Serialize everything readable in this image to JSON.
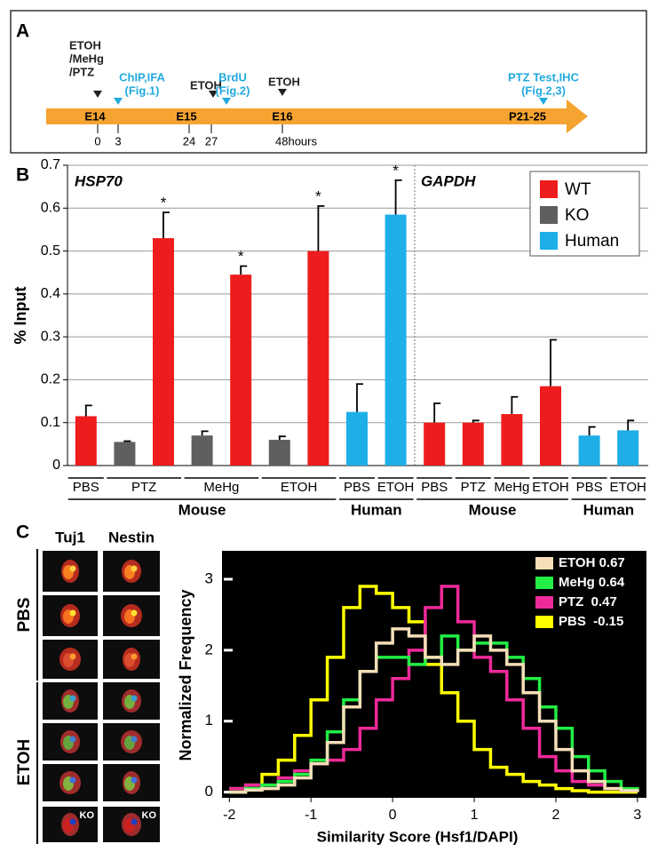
{
  "panel_labels": [
    "A",
    "B",
    "C"
  ],
  "timeline": {
    "events": [
      {
        "lines": [
          "ETOH",
          "/MeHg",
          "/PTZ"
        ],
        "color": "#222222"
      },
      {
        "lines": [
          "ChIP,IFA",
          "(Fig.1)"
        ],
        "color": "#22aadd"
      },
      {
        "lines": [
          "ETOH"
        ],
        "color": "#222222"
      },
      {
        "lines": [
          "BrdU",
          "(Fig.2)"
        ],
        "color": "#22aadd"
      },
      {
        "lines": [
          "ETOH"
        ],
        "color": "#222222"
      },
      {
        "lines": [
          "PTZ Test,IHC",
          "(Fig.2,3)"
        ],
        "color": "#22aadd"
      }
    ],
    "stages": [
      "E14",
      "E15",
      "E16",
      "P21-25"
    ],
    "hours": [
      "0",
      "3",
      "24",
      "27",
      "48hours"
    ],
    "bar_color": "#f5a431"
  },
  "chart_data": [
    {
      "type": "bar",
      "ylabel": "% Input",
      "gene_labels": [
        "HSP70",
        "GAPDH"
      ],
      "categories": [
        "PBS",
        "PTZ",
        null,
        "MeHg",
        null,
        "ETOH",
        null,
        "PBS",
        "ETOH",
        "PBS",
        "PTZ",
        "MeHg",
        "ETOH",
        "PBS",
        "ETOH"
      ],
      "group_labels": [
        "Mouse",
        null,
        null,
        null,
        null,
        null,
        null,
        "Human",
        null,
        "Mouse",
        null,
        null,
        null,
        "Human",
        null
      ],
      "series": [
        {
          "name": "WT",
          "color": "#ee1c1c",
          "values": [
            0.115,
            null,
            0.53,
            null,
            0.445,
            null,
            0.5,
            null,
            null,
            0.1,
            0.1,
            0.12,
            0.185,
            null,
            null
          ],
          "errors": [
            0.025,
            null,
            0.06,
            null,
            0.02,
            null,
            0.105,
            null,
            null,
            0.045,
            0.005,
            0.04,
            0.108,
            null,
            null
          ],
          "markers": [
            null,
            null,
            "*",
            null,
            "*",
            null,
            "*",
            null,
            null,
            null,
            null,
            null,
            null,
            null,
            null
          ]
        },
        {
          "name": "KO",
          "color": "#5f5f5f",
          "values": [
            null,
            0.055,
            null,
            0.07,
            null,
            0.06,
            null,
            null,
            null,
            null,
            null,
            null,
            null,
            null,
            null
          ],
          "errors": [
            null,
            0.002,
            null,
            0.01,
            null,
            0.008,
            null,
            null,
            null,
            null,
            null,
            null,
            null,
            null,
            null
          ],
          "markers": [
            null,
            null,
            null,
            null,
            null,
            null,
            null,
            null,
            null,
            null,
            null,
            null,
            null,
            null,
            null
          ]
        },
        {
          "name": "Human",
          "color": "#1eaee8",
          "values": [
            null,
            null,
            null,
            null,
            null,
            null,
            null,
            0.125,
            0.585,
            null,
            null,
            null,
            null,
            0.07,
            0.082
          ],
          "errors": [
            null,
            null,
            null,
            null,
            null,
            null,
            null,
            0.065,
            0.08,
            null,
            null,
            null,
            null,
            0.02,
            0.023
          ],
          "markers": [
            null,
            null,
            null,
            null,
            null,
            null,
            null,
            null,
            "*",
            null,
            null,
            null,
            null,
            null,
            null
          ]
        }
      ],
      "ylim": [
        0,
        0.7
      ],
      "yticks": [
        0,
        0.1,
        0.2,
        0.3,
        0.4,
        0.5,
        0.6,
        0.7
      ],
      "grid": true,
      "legend": "upper right"
    },
    {
      "type": "line",
      "drawstyle": "steps",
      "xlabel": "Similarity Score (Hsf1/DAPI)",
      "ylabel": "Normalized Frequency",
      "background": "#000000",
      "x": [
        -2,
        -1.8,
        -1.6,
        -1.4,
        -1.2,
        -1,
        -0.8,
        -0.6,
        -0.4,
        -0.2,
        0,
        0.2,
        0.4,
        0.6,
        0.8,
        1,
        1.2,
        1.4,
        1.6,
        1.8,
        2,
        2.2,
        2.4,
        2.6,
        2.8,
        3
      ],
      "series": [
        {
          "name": "ETOH 0.67",
          "color": "#f5deb8",
          "values": [
            0,
            0.03,
            0.05,
            0.1,
            0.2,
            0.4,
            0.7,
            1.2,
            1.7,
            2.1,
            2.3,
            2.2,
            1.9,
            1.8,
            2.0,
            2.2,
            2.0,
            1.8,
            1.4,
            1.0,
            0.6,
            0.3,
            0.15,
            0.05,
            0.02,
            0
          ]
        },
        {
          "name": "MeHg 0.64",
          "color": "#22ee44",
          "values": [
            0,
            0.05,
            0.1,
            0.15,
            0.25,
            0.45,
            0.85,
            1.3,
            1.7,
            1.9,
            1.9,
            1.8,
            1.9,
            2.2,
            2.0,
            2.1,
            2.1,
            1.9,
            1.6,
            1.2,
            0.9,
            0.5,
            0.3,
            0.15,
            0.05,
            0.02
          ]
        },
        {
          "name": "PTZ  0.47",
          "color": "#ee2a9a",
          "values": [
            0.05,
            0.1,
            0.1,
            0.2,
            0.3,
            0.4,
            0.45,
            0.6,
            0.9,
            1.3,
            1.6,
            2.0,
            2.6,
            2.9,
            2.4,
            1.9,
            1.7,
            1.3,
            0.9,
            0.5,
            0.3,
            0.15,
            0.1,
            0.05,
            0.02,
            0
          ]
        },
        {
          "name": "PBS  -0.15",
          "color": "#ffff00",
          "values": [
            0.05,
            0.1,
            0.25,
            0.45,
            0.8,
            1.3,
            1.9,
            2.6,
            2.9,
            2.8,
            2.6,
            2.4,
            1.8,
            1.4,
            1.0,
            0.6,
            0.35,
            0.25,
            0.15,
            0.1,
            0.05,
            0.02,
            0,
            0,
            0,
            0
          ]
        }
      ],
      "xlim": [
        -2.09,
        3.11
      ],
      "ylim": [
        -0.08,
        3.4
      ],
      "xticks": [
        -2,
        -1,
        0,
        1,
        2,
        3
      ],
      "yticks": [
        0,
        1,
        2,
        3
      ],
      "legend": "upper right"
    }
  ],
  "cells": {
    "columns": [
      "Tuj1",
      "Nestin"
    ],
    "rows": [
      "PBS",
      "ETOH"
    ],
    "knockout_label": "KO"
  }
}
